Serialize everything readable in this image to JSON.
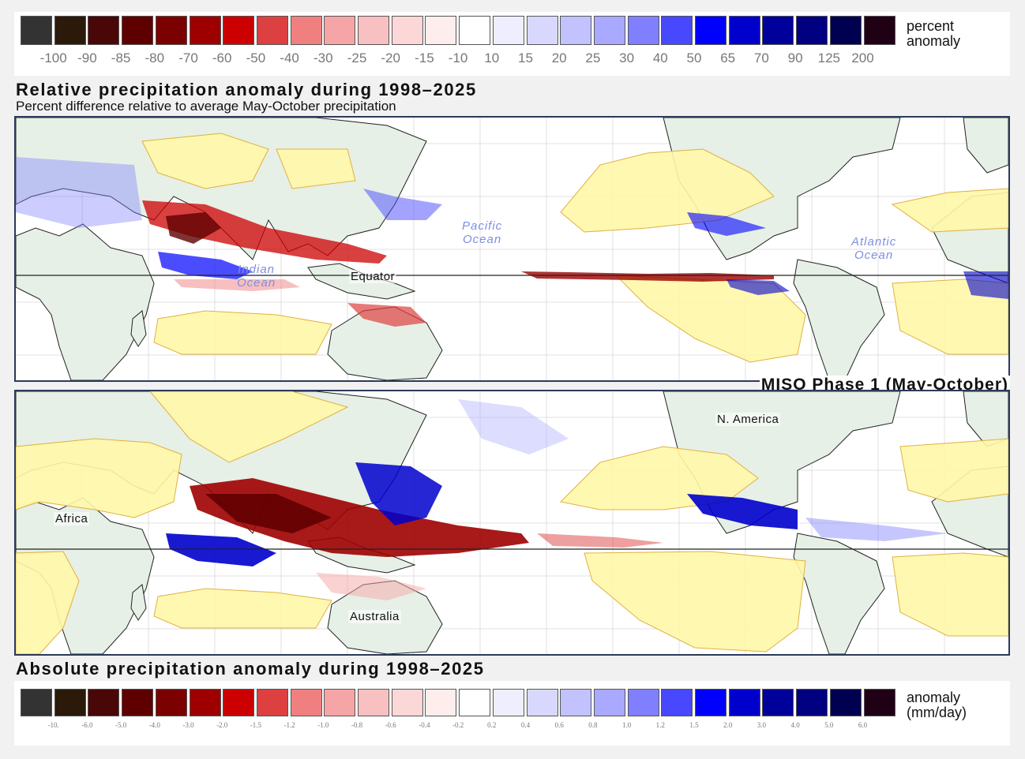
{
  "top_colorbar": {
    "colors": [
      "#333333",
      "#2b1a0a",
      "#4a0707",
      "#5e0000",
      "#7b0000",
      "#9e0000",
      "#cc0000",
      "#dd4040",
      "#f08080",
      "#f5a5a5",
      "#f8c0c0",
      "#fbd7d7",
      "#fdeded",
      "#ffffff",
      "#eeeeff",
      "#d8d8ff",
      "#c2c2ff",
      "#a9a9ff",
      "#8080ff",
      "#4848ff",
      "#0000ff",
      "#0000cc",
      "#00009a",
      "#000080",
      "#000050",
      "#200014"
    ],
    "ticks": [
      "-100",
      "-90",
      "-85",
      "-80",
      "-70",
      "-60",
      "-50",
      "-40",
      "-30",
      "-25",
      "-20",
      "-15",
      "-10",
      "10",
      "15",
      "20",
      "25",
      "30",
      "40",
      "50",
      "65",
      "70",
      "90",
      "125",
      "200"
    ],
    "units_line1": "percent",
    "units_line2": "anomaly"
  },
  "top_title": "Relative precipitation anomaly during 1998–2025",
  "top_subtitle": "Percent difference relative to average May-October precipitation",
  "top_map_labels": {
    "pacific_ocean_1": "Pacific",
    "pacific_ocean_2": "Ocean",
    "atlantic_ocean_1": "Atlantic",
    "atlantic_ocean_2": "Ocean",
    "indian_ocean_1": "Indian",
    "indian_ocean_2": "Ocean",
    "equator": "Equator"
  },
  "phase_label": "MISO Phase 1 (May-October)",
  "bottom_map_labels": {
    "north_america": "N. America",
    "africa": "Africa",
    "australia": "Australia"
  },
  "bottom_title": "Absolute precipitation anomaly during 1998–2025",
  "bottom_colorbar": {
    "colors": [
      "#333333",
      "#2b1a0a",
      "#4a0707",
      "#5e0000",
      "#7b0000",
      "#9e0000",
      "#cc0000",
      "#dd4040",
      "#f08080",
      "#f5a5a5",
      "#f8c0c0",
      "#fbd7d7",
      "#fdeded",
      "#ffffff",
      "#eeeeff",
      "#d8d8ff",
      "#c2c2ff",
      "#a9a9ff",
      "#8080ff",
      "#4848ff",
      "#0000ff",
      "#0000cc",
      "#00009a",
      "#000080",
      "#000050",
      "#200014"
    ],
    "ticks": [
      "-10.",
      "-6.0",
      "-5.0",
      "-4.0",
      "-3.0",
      "-2.0",
      "-1.5",
      "-1.2",
      "-1.0",
      "-0.8",
      "-0.6",
      "-0.4",
      "-0.2",
      "0.2",
      "0.4",
      "0.6",
      "0.8",
      "1.0",
      "1.2",
      "1.5",
      "2.0",
      "3.0",
      "4.0",
      "5.0",
      "6.0"
    ],
    "units_line1": "anomaly",
    "units_line2": "(mm/day)"
  },
  "map_colors": {
    "ocean": "#ffffff",
    "land": "#e6f0e6",
    "masked_region": "#fff7a8",
    "mask_outline": "#e0b040",
    "coastline": "#222222",
    "gridline": "#d8d8d8"
  }
}
